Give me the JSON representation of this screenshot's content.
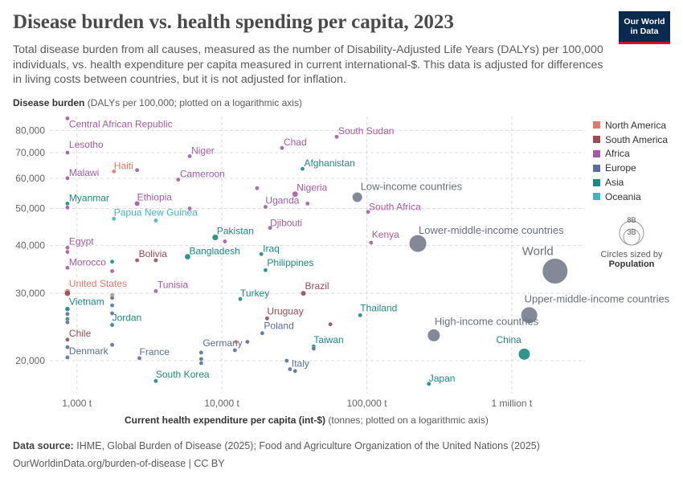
{
  "header": {
    "title": "Disease burden vs. health spending per capita, 2023",
    "subtitle": "Total disease burden from all causes, measured as the number of Disability-Adjusted Life Years (DALYs) per 100,000 individuals, vs. health expenditure per capita measured in current international-$. This data is adjusted for differences in living costs between countries, but it is not adjusted for inflation.",
    "logo_line1": "Our World",
    "logo_line2": "in Data"
  },
  "footer": {
    "source_label": "Data source:",
    "source_text": "IHME, Global Burden of Disease (2025); Food and Agriculture Organization of the United Nations (2025)",
    "url": "OurWorldinData.org/burden-of-disease | CC BY"
  },
  "size_legend": {
    "big": "8B",
    "small": "3B",
    "caption": "Circles sized by",
    "metric": "Population"
  },
  "chart_data": {
    "type": "scatter",
    "title": "Disease burden vs. health spending per capita, 2023",
    "xlabel": "Current health expenditure per capita (int-$)",
    "xlabel_note": "(tonnes; plotted on a logarithmic axis)",
    "ylabel": "Disease burden",
    "ylabel_note": "(DALYs per 100,000; plotted on a logarithmic axis)",
    "x_scale": "log",
    "y_scale": "log",
    "xlim": [
      650,
      3200000
    ],
    "ylim": [
      16400,
      87000
    ],
    "x_ticks": [
      {
        "value": 1000,
        "label": "1,000 t"
      },
      {
        "value": 10000,
        "label": "10,000 t"
      },
      {
        "value": 100000,
        "label": "100,000 t"
      },
      {
        "value": 1000000,
        "label": "1 million t"
      }
    ],
    "y_ticks": [
      {
        "value": 20000,
        "label": "20,000"
      },
      {
        "value": 30000,
        "label": "30,000"
      },
      {
        "value": 40000,
        "label": "40,000"
      },
      {
        "value": 50000,
        "label": "50,000"
      },
      {
        "value": 60000,
        "label": "60,000"
      },
      {
        "value": 70000,
        "label": "70,000"
      },
      {
        "value": 80000,
        "label": "80,000"
      }
    ],
    "grid": true,
    "legend_position": "right",
    "regions": [
      {
        "name": "North America",
        "color": "#e17a6a"
      },
      {
        "name": "South America",
        "color": "#9c4a56"
      },
      {
        "name": "Africa",
        "color": "#a55aa6"
      },
      {
        "name": "Europe",
        "color": "#5a6e9e"
      },
      {
        "name": "Asia",
        "color": "#1c8a80"
      },
      {
        "name": "Oceania",
        "color": "#3fb4c4"
      }
    ],
    "aggregate_color": "#7d8391",
    "points": [
      {
        "label": "Central African Republic",
        "region": "Africa",
        "x": 860,
        "y": 86000,
        "r": 2.6,
        "lx": 2,
        "ly": 11
      },
      {
        "label": "South Sudan",
        "region": "Africa",
        "x": 62000,
        "y": 77000,
        "r": 2.6
      },
      {
        "label": "Lesotho",
        "region": "Africa",
        "x": 860,
        "y": 70000,
        "r": 2.6,
        "lx": 2,
        "ly": -6
      },
      {
        "label": "Chad",
        "region": "Africa",
        "x": 26000,
        "y": 72000,
        "r": 2.6
      },
      {
        "label": "Niger",
        "region": "Africa",
        "x": 6000,
        "y": 68500,
        "r": 2.6
      },
      {
        "label": "Haiti",
        "region": "North America",
        "x": 1800,
        "y": 62500,
        "r": 2.6,
        "lx": 0,
        "ly": -3
      },
      {
        "label": "",
        "region": "Africa",
        "x": 2600,
        "y": 63000,
        "r": 2.6
      },
      {
        "label": "Malawi",
        "region": "Africa",
        "x": 860,
        "y": 60000,
        "r": 2.6,
        "lx": 2,
        "ly": -3
      },
      {
        "label": "Cameroon",
        "region": "Africa",
        "x": 5000,
        "y": 59500,
        "r": 2.6
      },
      {
        "label": "Afghanistan",
        "region": "Asia",
        "x": 36000,
        "y": 63500,
        "r": 2.6
      },
      {
        "label": "Nigeria",
        "region": "Africa",
        "x": 32000,
        "y": 54500,
        "r": 3.6,
        "ly": -4
      },
      {
        "label": "",
        "region": "Africa",
        "x": 17500,
        "y": 56500,
        "r": 2.6
      },
      {
        "label": "Low-income countries",
        "region": "Aggregate",
        "x": 86000,
        "y": 53500,
        "r": 6.5,
        "lx": 4,
        "ly": -9
      },
      {
        "label": "Myanmar",
        "region": "Asia",
        "x": 860,
        "y": 51500,
        "r": 2.6,
        "lx": 2,
        "ly": -3
      },
      {
        "label": "",
        "region": "Africa",
        "x": 860,
        "y": 50300,
        "r": 2.6
      },
      {
        "label": "Ethiopia",
        "region": "Africa",
        "x": 2600,
        "y": 51500,
        "r": 3.2,
        "lx": 0,
        "ly": -4
      },
      {
        "label": "",
        "region": "Africa",
        "x": 6000,
        "y": 50000,
        "r": 2.6
      },
      {
        "label": "Uganda",
        "region": "Africa",
        "x": 20000,
        "y": 50500,
        "r": 2.6,
        "lx": 0,
        "ly": -4
      },
      {
        "label": "",
        "region": "Africa",
        "x": 39000,
        "y": 51500,
        "r": 2.6
      },
      {
        "label": "South Africa",
        "region": "Africa",
        "x": 102000,
        "y": 49000,
        "r": 2.6,
        "lx": 1,
        "ly": -2
      },
      {
        "label": "Papua New Guinea",
        "region": "Oceania",
        "x": 1800,
        "y": 47000,
        "r": 2.6,
        "lx": 0,
        "ly": -4
      },
      {
        "label": "",
        "region": "Oceania",
        "x": 3500,
        "y": 46500,
        "r": 2.6
      },
      {
        "label": "Djibouti",
        "region": "Africa",
        "x": 21500,
        "y": 44500,
        "r": 2.6,
        "lx": 0,
        "ly": -2
      },
      {
        "label": "Pakistan",
        "region": "Asia",
        "x": 9000,
        "y": 42000,
        "r": 3.8,
        "ly": -4
      },
      {
        "label": "",
        "region": "Africa",
        "x": 10500,
        "y": 41000,
        "r": 2.6
      },
      {
        "label": "Kenya",
        "region": "Africa",
        "x": 107000,
        "y": 40700,
        "r": 2.6,
        "lx": 1,
        "ly": -6
      },
      {
        "label": "Lower-middle-income countries",
        "region": "Aggregate",
        "x": 225000,
        "y": 40500,
        "r": 11,
        "lx": 1,
        "ly": -12
      },
      {
        "label": "Egypt",
        "region": "Africa",
        "x": 860,
        "y": 39500,
        "r": 2.6,
        "lx": 2,
        "ly": -4
      },
      {
        "label": "",
        "region": "Africa",
        "x": 860,
        "y": 38500,
        "r": 2.6
      },
      {
        "label": "Bangladesh",
        "region": "Asia",
        "x": 5800,
        "y": 37400,
        "r": 3.6,
        "ly": -3
      },
      {
        "label": "Iraq",
        "region": "Asia",
        "x": 18700,
        "y": 38000,
        "r": 2.6,
        "ly": -3
      },
      {
        "label": "Bolivia",
        "region": "South America",
        "x": 2600,
        "y": 36600,
        "r": 2.6,
        "ly": -4
      },
      {
        "label": "",
        "region": "South America",
        "x": 3500,
        "y": 36600,
        "r": 2.6
      },
      {
        "label": "Morocco",
        "region": "Africa",
        "x": 860,
        "y": 35000,
        "r": 2.6,
        "lx": 2,
        "ly": -3
      },
      {
        "label": "",
        "region": "Asia",
        "x": 1750,
        "y": 36300,
        "r": 2.6
      },
      {
        "label": "",
        "region": "Africa",
        "x": 1750,
        "y": 34300,
        "r": 2.6
      },
      {
        "label": "Philippines",
        "region": "Asia",
        "x": 20000,
        "y": 34500,
        "r": 2.6,
        "ly": -5
      },
      {
        "label": "United States",
        "region": "North America",
        "x": 860,
        "y": 30300,
        "r": 3.6,
        "lx": 2,
        "ly": -6
      },
      {
        "label": "",
        "region": "South America",
        "x": 860,
        "y": 30000,
        "r": 3.6
      },
      {
        "label": "",
        "region": "North America",
        "x": 1750,
        "y": 29700,
        "r": 2.6
      },
      {
        "label": "Tunisia",
        "region": "Africa",
        "x": 3500,
        "y": 30400,
        "r": 2.6,
        "ly": -4
      },
      {
        "label": "Brazil",
        "region": "South America",
        "x": 36500,
        "y": 30000,
        "r": 3.2,
        "ly": -5
      },
      {
        "label": "Turkey",
        "region": "Asia",
        "x": 13400,
        "y": 29000,
        "r": 2.6,
        "lx": 0,
        "ly": -3
      },
      {
        "label": "Vietnam",
        "region": "Asia",
        "x": 860,
        "y": 27300,
        "r": 3.0,
        "lx": 2,
        "ly": -5
      },
      {
        "label": "",
        "region": "Europe",
        "x": 860,
        "y": 26500,
        "r": 2.6
      },
      {
        "label": "",
        "region": "Asia",
        "x": 860,
        "y": 25700,
        "r": 2.6
      },
      {
        "label": "",
        "region": "Europe",
        "x": 860,
        "y": 25200,
        "r": 2.6
      },
      {
        "label": "",
        "region": "Europe",
        "x": 1750,
        "y": 29200,
        "r": 2.6
      },
      {
        "label": "",
        "region": "Europe",
        "x": 1750,
        "y": 27900,
        "r": 2.6
      },
      {
        "label": "",
        "region": "Europe",
        "x": 1750,
        "y": 26600,
        "r": 2.6
      },
      {
        "label": "Jordan",
        "region": "Asia",
        "x": 1750,
        "y": 24800,
        "r": 2.6,
        "lx": 0,
        "ly": -5
      },
      {
        "label": "Uruguay",
        "region": "South America",
        "x": 20500,
        "y": 25800,
        "r": 2.6,
        "lx": 0,
        "ly": -5
      },
      {
        "label": "Thailand",
        "region": "Asia",
        "x": 90000,
        "y": 26300,
        "r": 2.6,
        "lx": 0,
        "ly": -5
      },
      {
        "label": "Upper-middle-income countries",
        "region": "Aggregate",
        "x": 1320000,
        "y": 26300,
        "r": 10.5,
        "lx": -6,
        "ly": -16
      },
      {
        "label": "",
        "region": "South America",
        "x": 56000,
        "y": 24900,
        "r": 2.6
      },
      {
        "label": "Poland",
        "region": "Europe",
        "x": 19000,
        "y": 23600,
        "r": 2.6,
        "ly": -5
      },
      {
        "label": "High-income countries",
        "region": "Aggregate",
        "x": 290000,
        "y": 23300,
        "r": 8,
        "lx": 1,
        "ly": -13
      },
      {
        "label": "Chile",
        "region": "South America",
        "x": 860,
        "y": 22700,
        "r": 2.6,
        "lx": 2,
        "ly": -4
      },
      {
        "label": "",
        "region": "Europe",
        "x": 860,
        "y": 21700,
        "r": 2.6
      },
      {
        "label": "",
        "region": "Europe",
        "x": 1750,
        "y": 22000,
        "r": 2.6
      },
      {
        "label": "",
        "region": "Europe",
        "x": 15000,
        "y": 22400,
        "r": 2.6
      },
      {
        "label": "",
        "region": "North America",
        "x": 12500,
        "y": 22400,
        "r": 2.6
      },
      {
        "label": "Germany",
        "region": "Europe",
        "x": 12300,
        "y": 21300,
        "r": 2.6,
        "lx": -40,
        "ly": -5
      },
      {
        "label": "",
        "region": "Europe",
        "x": 7200,
        "y": 21000,
        "r": 2.6
      },
      {
        "label": "Taiwan",
        "region": "Asia",
        "x": 43000,
        "y": 21800,
        "r": 2.6,
        "lx": 0,
        "ly": -4
      },
      {
        "label": "",
        "region": "Europe",
        "x": 43000,
        "y": 21500,
        "r": 2.6
      },
      {
        "label": "China",
        "region": "Asia",
        "x": 1220000,
        "y": 20800,
        "r": 7.5,
        "lx": -35,
        "ly": -14
      },
      {
        "label": "Denmark",
        "region": "Europe",
        "x": 860,
        "y": 20400,
        "r": 2.6,
        "lx": 2,
        "ly": -4
      },
      {
        "label": "France",
        "region": "Europe",
        "x": 2700,
        "y": 20300,
        "r": 2.6,
        "lx": 0,
        "ly": -4
      },
      {
        "label": "",
        "region": "Europe",
        "x": 7200,
        "y": 20200,
        "r": 2.6
      },
      {
        "label": "",
        "region": "Europe",
        "x": 7200,
        "y": 19700,
        "r": 2.6
      },
      {
        "label": "",
        "region": "Europe",
        "x": 28000,
        "y": 20000,
        "r": 2.6
      },
      {
        "label": "Italy",
        "region": "Europe",
        "x": 29500,
        "y": 19000,
        "r": 2.6,
        "lx": 2,
        "ly": -3
      },
      {
        "label": "",
        "region": "Europe",
        "x": 32000,
        "y": 18800,
        "r": 2.6
      },
      {
        "label": "South Korea",
        "region": "Asia",
        "x": 3500,
        "y": 17700,
        "r": 2.6,
        "lx": 0,
        "ly": -4
      },
      {
        "label": "Japan",
        "region": "Asia",
        "x": 268000,
        "y": 17400,
        "r": 2.6,
        "lx": 0,
        "ly": -3
      },
      {
        "label": "World",
        "region": "Aggregate",
        "x": 1990000,
        "y": 34300,
        "r": 16,
        "lx": -41,
        "ly": -20
      }
    ]
  }
}
